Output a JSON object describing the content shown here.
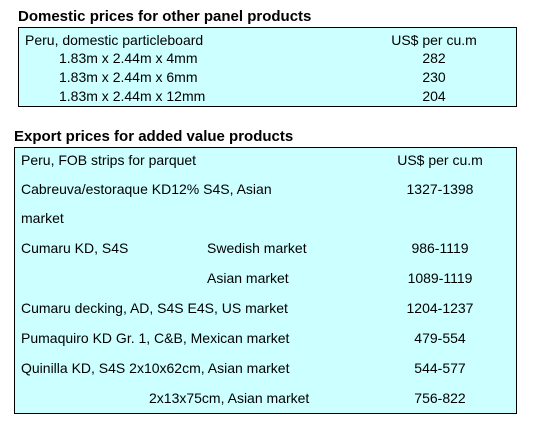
{
  "domestic": {
    "title": "Domestic prices for other panel products",
    "header_label": "Peru, domestic particleboard",
    "header_unit": "US$ per cu.m",
    "rows": [
      {
        "label": "1.83m x 2.44m x 4mm",
        "price": "282"
      },
      {
        "label": "1.83m x 2.44m x 6mm",
        "price": "230"
      },
      {
        "label": "1.83m x 2.44m x 12mm",
        "price": "204"
      }
    ]
  },
  "export": {
    "title": "Export prices for added value products",
    "header_label": "Peru, FOB strips for parquet",
    "header_unit": "US$ per cu.m",
    "rows": [
      {
        "label": "Cabreuva/estoraque KD12% S4S, Asian",
        "label2": "market",
        "market": "",
        "price": "1327-1398"
      },
      {
        "label": "Cumaru KD, S4S",
        "market": "Swedish market",
        "price": "986-1119"
      },
      {
        "label": "",
        "market": "Asian market",
        "price": "1089-1119"
      },
      {
        "label": "Cumaru decking, AD, S4S E4S,  US market",
        "market": "",
        "price": "1204-1237"
      },
      {
        "label": "Pumaquiro KD Gr. 1, C&B,  Mexican market",
        "market": "",
        "price": "479-554"
      },
      {
        "label": "Quinilla KD, S4S 2x10x62cm,  Asian market",
        "market": "",
        "price": "544-577"
      },
      {
        "label": "2x13x75cm, Asian market",
        "market": "",
        "price": "756-822"
      }
    ]
  }
}
